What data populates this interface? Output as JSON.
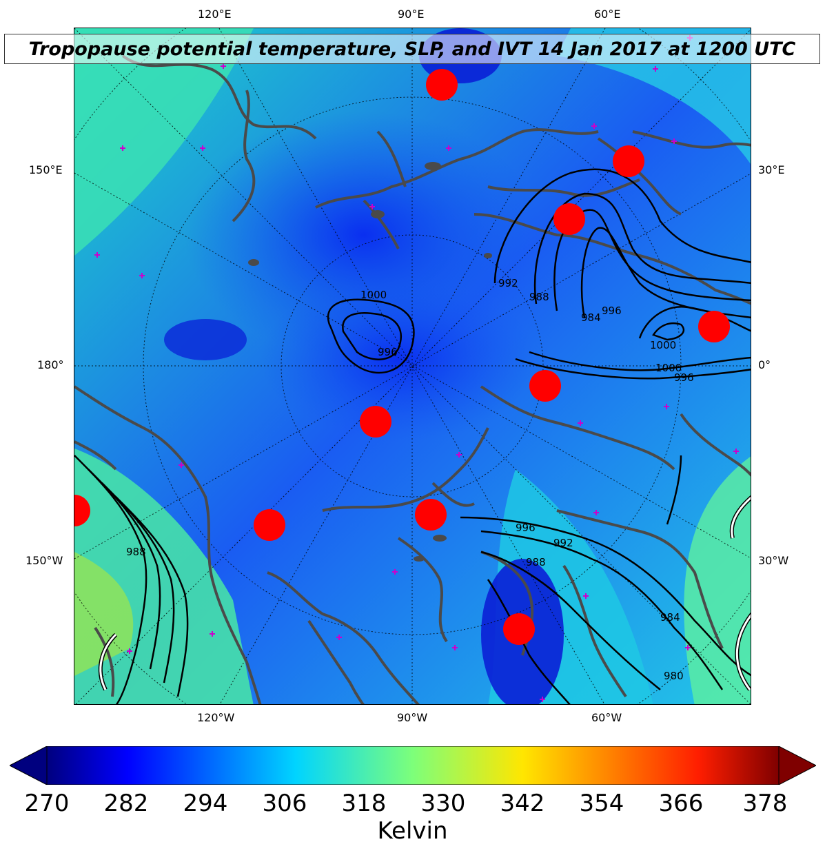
{
  "title": "Tropopause potential temperature, SLP, and IVT 14 Jan 2017 at 1200 UTC",
  "longitude_labels": {
    "top": [
      "120°E",
      "90°E",
      "60°E"
    ],
    "bottom": [
      "120°W",
      "90°W",
      "60°W"
    ],
    "left": [
      "150°E",
      "180°",
      "150°W"
    ],
    "right": [
      "30°E",
      "0°",
      "30°W"
    ]
  },
  "slp_contour_labels": [
    "1000",
    "996",
    "992",
    "988",
    "984",
    "996",
    "1000",
    "1000",
    "996",
    "996",
    "992",
    "988",
    "984",
    "980",
    "988"
  ],
  "colorbar": {
    "label": "Kelvin",
    "ticks": [
      "270",
      "282",
      "294",
      "306",
      "318",
      "330",
      "342",
      "354",
      "366",
      "378"
    ],
    "colormap": "jet",
    "extend": "both"
  },
  "colors": {
    "land_outline": "#4a4a4a",
    "ivt_marker": "#ff0000",
    "station_marker": "#cc00cc",
    "slp_contour": "#000000"
  },
  "icons": [
    "ivt-marker-icon",
    "station-marker-icon"
  ]
}
